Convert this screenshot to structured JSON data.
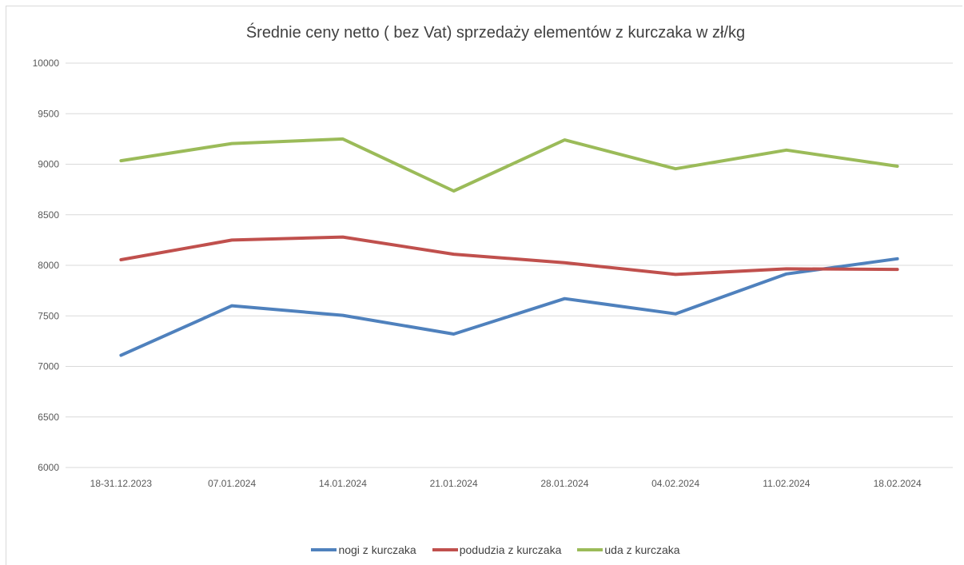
{
  "chart_data": {
    "type": "line",
    "title": "Średnie ceny netto ( bez Vat) sprzedaży elementów z kurczaka w zł/kg",
    "categories": [
      "18-31.12.2023",
      "07.01.2024",
      "14.01.2024",
      "21.01.2024",
      "28.01.2024",
      "04.02.2024",
      "11.02.2024",
      "18.02.2024"
    ],
    "series": [
      {
        "name": "nogi z kurczaka",
        "color": "#4f81bd",
        "values": [
          7110,
          7600,
          7505,
          7320,
          7670,
          7520,
          7915,
          8065
        ]
      },
      {
        "name": "podudzia z kurczaka",
        "color": "#c0504d",
        "values": [
          8055,
          8250,
          8280,
          8110,
          8025,
          7910,
          7965,
          7960
        ]
      },
      {
        "name": "uda z kurczaka",
        "color": "#9bbb59",
        "values": [
          9035,
          9205,
          9250,
          8735,
          9240,
          8955,
          9140,
          8980
        ]
      }
    ],
    "ylim": [
      6000,
      10000
    ],
    "yticks": [
      "6000",
      "6500",
      "7000",
      "7500",
      "8000",
      "8500",
      "9000",
      "9500",
      "10000"
    ],
    "grid": true,
    "legend": "bottom"
  }
}
